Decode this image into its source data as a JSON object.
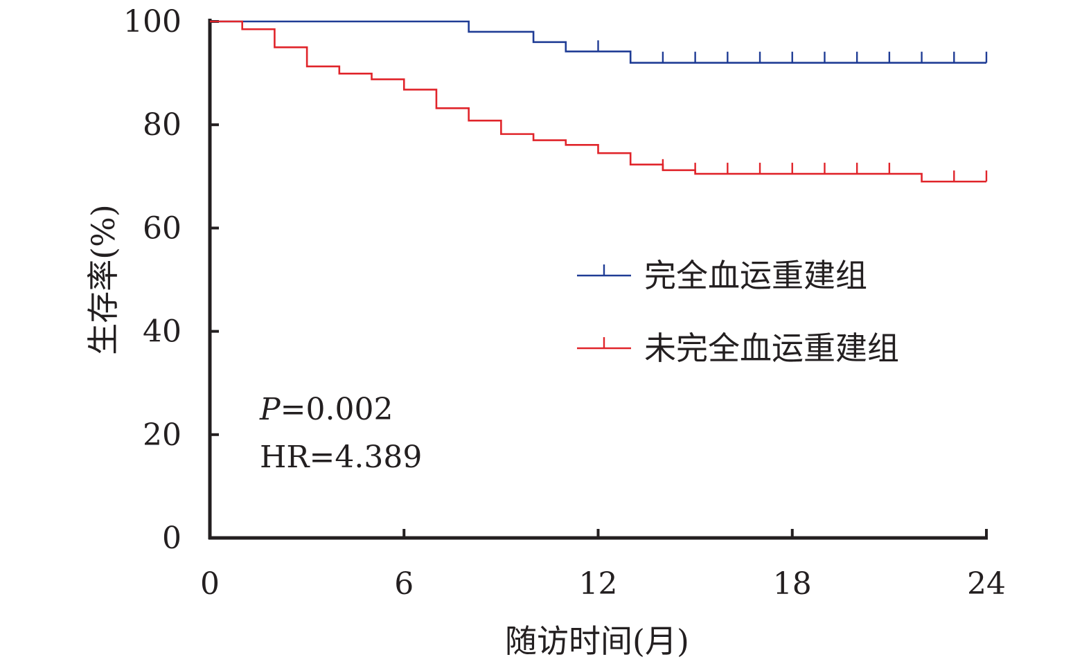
{
  "chart_data": {
    "type": "line",
    "subtype": "kaplan-meier-step",
    "xlabel": "随访时间(月)",
    "ylabel": "生存率(%)",
    "xlim": [
      0,
      24
    ],
    "ylim": [
      0,
      100
    ],
    "xticks": [
      0,
      6,
      12,
      18,
      24
    ],
    "yticks": [
      0,
      20,
      40,
      60,
      80,
      100
    ],
    "grid": false,
    "legend_position": "center-right",
    "annotations": [
      {
        "italic": "P",
        "text": "=0.002"
      },
      {
        "text": "HR=4.389"
      }
    ],
    "series": [
      {
        "name": "完全血运重建组",
        "color": "#1f3c95",
        "steps": [
          [
            0,
            100
          ],
          [
            8,
            98
          ],
          [
            10,
            96
          ],
          [
            11,
            94.2
          ],
          [
            13,
            92
          ]
        ],
        "censor": [
          12,
          14,
          15,
          16,
          17,
          18,
          19,
          20,
          21,
          22,
          23,
          24
        ]
      },
      {
        "name": "未完全血运重建组",
        "color": "#e0242a",
        "steps": [
          [
            0,
            100
          ],
          [
            1,
            98.5
          ],
          [
            2,
            95
          ],
          [
            3,
            91.3
          ],
          [
            4,
            89.9
          ],
          [
            5,
            88.8
          ],
          [
            6,
            86.8
          ],
          [
            7,
            83.2
          ],
          [
            8,
            80.8
          ],
          [
            9,
            78.2
          ],
          [
            10,
            77
          ],
          [
            11,
            76.1
          ],
          [
            12,
            74.5
          ],
          [
            13,
            72.3
          ],
          [
            14,
            71.2
          ],
          [
            15,
            70.5
          ],
          [
            22,
            69
          ]
        ],
        "censor": [
          14,
          15,
          16,
          17,
          18,
          19,
          20,
          21,
          23,
          24
        ]
      }
    ]
  }
}
